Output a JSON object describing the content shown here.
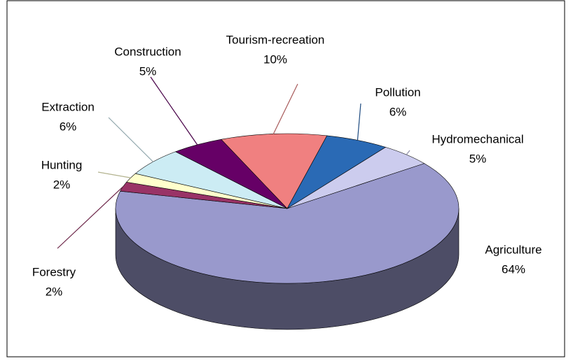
{
  "chart_data": {
    "type": "pie3d",
    "categories": [
      "Agriculture",
      "Forestry",
      "Hunting",
      "Extraction",
      "Construction",
      "Tourism-recreation",
      "Pollution",
      "Hydromechanical"
    ],
    "values": [
      64,
      2,
      2,
      6,
      5,
      10,
      6,
      5
    ],
    "value_labels": [
      "64%",
      "2%",
      "2%",
      "6%",
      "5%",
      "10%",
      "6%",
      "5%"
    ],
    "colors": [
      "#9999cc",
      "#993366",
      "#ffffcc",
      "#ccecf4",
      "#660066",
      "#f08080",
      "#2a6ab5",
      "#ccccee"
    ]
  }
}
